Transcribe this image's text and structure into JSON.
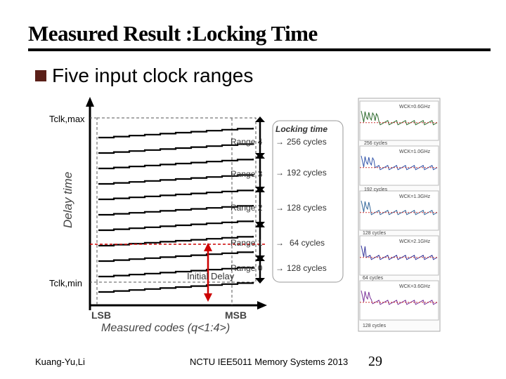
{
  "slide": {
    "title": "Measured Result :Locking Time",
    "bullet": "Five input clock ranges"
  },
  "diagram": {
    "y_axis_label": "Delay time",
    "y_top_label": "Tclk,max",
    "y_bottom_label": "Tclk,min",
    "x_axis_label": "Measured codes (q<1:4>)",
    "x_left_label": "LSB",
    "x_right_label": "MSB",
    "initial_delay_label": "Initial Delay",
    "locking_time_header": "Locking time",
    "ranges": [
      {
        "name": "Range 4",
        "cycles": "256 cycles"
      },
      {
        "name": "Range 3",
        "cycles": "192 cycles"
      },
      {
        "name": "Range 2",
        "cycles": "128 cycles"
      },
      {
        "name": "Range 1",
        "cycles": "64 cycles"
      },
      {
        "name": "Range 0",
        "cycles": "128 cycles"
      }
    ]
  },
  "measurements": {
    "panels": [
      {
        "freq": "WCK=0.6GHz",
        "lock": "256 cycles"
      },
      {
        "freq": "WCK=1.0GHz",
        "lock": "192 cycles"
      },
      {
        "freq": "WCK=1.3GHz",
        "lock": "128 cycles"
      },
      {
        "freq": "WCK=2.1GHz",
        "lock": "64 cycles"
      },
      {
        "freq": "WCK=3.6GHz",
        "lock": "128 cycles"
      }
    ]
  },
  "footer": {
    "author": "Kuang-Yu,Li",
    "course": "NCTU IEE5011 Memory Systems 2013",
    "page": "29"
  }
}
